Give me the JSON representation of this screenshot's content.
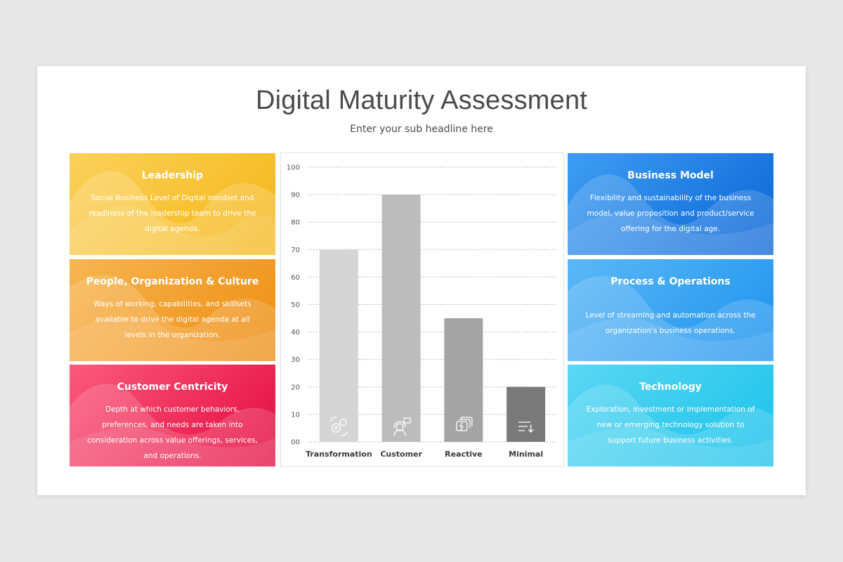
{
  "title": "Digital Maturity Assessment",
  "subtitle": "Enter your sub headline here",
  "cards_left": [
    {
      "title": "Leadership",
      "body": "Social Business Level of Digital mindset and readiness of the leadership team to drive the digital agenda."
    },
    {
      "title": "People, Organization & Culture",
      "body": "Ways of working, capabilities, and skillsets available to drive the digital agenda at all levels in the organization."
    },
    {
      "title": "Customer Centricity",
      "body": "Depth at which customer behaviors, preferences, and needs are taken into consideration across value offerings, services, and operations."
    }
  ],
  "cards_right": [
    {
      "title": "Business Model",
      "body": "Flexibility and sustainability of the business model, value proposition and product/service offering for the digital age."
    },
    {
      "title": "Process & Operations",
      "body": "Level of streaming and automation across the organization's business operations."
    },
    {
      "title": "Technology",
      "body": "Exploration, investment or implementation of new or emerging technology solution to support future business activities."
    }
  ],
  "colors": {
    "leadership": "#f5b615",
    "people": "#ed8c10",
    "customer_centricity": "#e3093f",
    "business_model": "#0a64d6",
    "process": "#1c92ef",
    "technology": "#1bc2eb"
  },
  "chart_data": {
    "type": "bar",
    "categories": [
      "Transformation",
      "Customer",
      "Reactive",
      "Minimal"
    ],
    "values": [
      70,
      90,
      45,
      20
    ],
    "bar_colors": [
      "#d5d5d5",
      "#bcbcbc",
      "#a4a4a4",
      "#7a7a7a"
    ],
    "bar_icons": [
      "gears-icon",
      "customer-support-icon",
      "chat-bubbles-icon",
      "sort-list-icon"
    ],
    "yticks": [
      "00",
      "10",
      "20",
      "30",
      "40",
      "50",
      "60",
      "70",
      "80",
      "90",
      "100"
    ],
    "ylim": [
      0,
      100
    ],
    "grid": true,
    "title": "",
    "xlabel": "",
    "ylabel": ""
  }
}
